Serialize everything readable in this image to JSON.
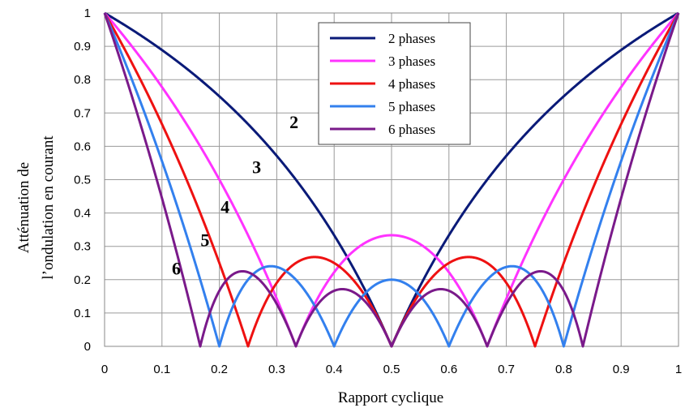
{
  "chart_data": {
    "type": "line",
    "title": "",
    "xlabel": "Rapport cyclique",
    "ylabel_lines": [
      "Atténuation de",
      "l’ondulation en courant"
    ],
    "xlim": [
      0,
      1
    ],
    "ylim": [
      0,
      1
    ],
    "xticks": [
      "0",
      "0.1",
      "0.2",
      "0.3",
      "0.4",
      "0.5",
      "0.6",
      "0.7",
      "0.8",
      "0.9",
      "1"
    ],
    "yticks": [
      "0",
      "0.1",
      "0.2",
      "0.3",
      "0.4",
      "0.5",
      "0.6",
      "0.7",
      "0.8",
      "0.9",
      "1"
    ],
    "grid": true,
    "legend_position": "top-center",
    "series": [
      {
        "name": "2 phases",
        "N": 2,
        "color": "#0a1a78",
        "label": "2",
        "label_at": [
          0.33,
          0.655
        ]
      },
      {
        "name": "3 phases",
        "N": 3,
        "color": "#ff33ff",
        "label": "3",
        "label_at": [
          0.265,
          0.52
        ]
      },
      {
        "name": "4 phases",
        "N": 4,
        "color": "#ee1111",
        "label": "4",
        "label_at": [
          0.21,
          0.4
        ]
      },
      {
        "name": "5 phases",
        "N": 5,
        "color": "#3380ee",
        "label": "5",
        "label_at": [
          0.175,
          0.3
        ]
      },
      {
        "name": "6 phases",
        "N": 6,
        "color": "#7a1a8a",
        "label": "6",
        "label_at": [
          0.125,
          0.215
        ]
      }
    ]
  }
}
